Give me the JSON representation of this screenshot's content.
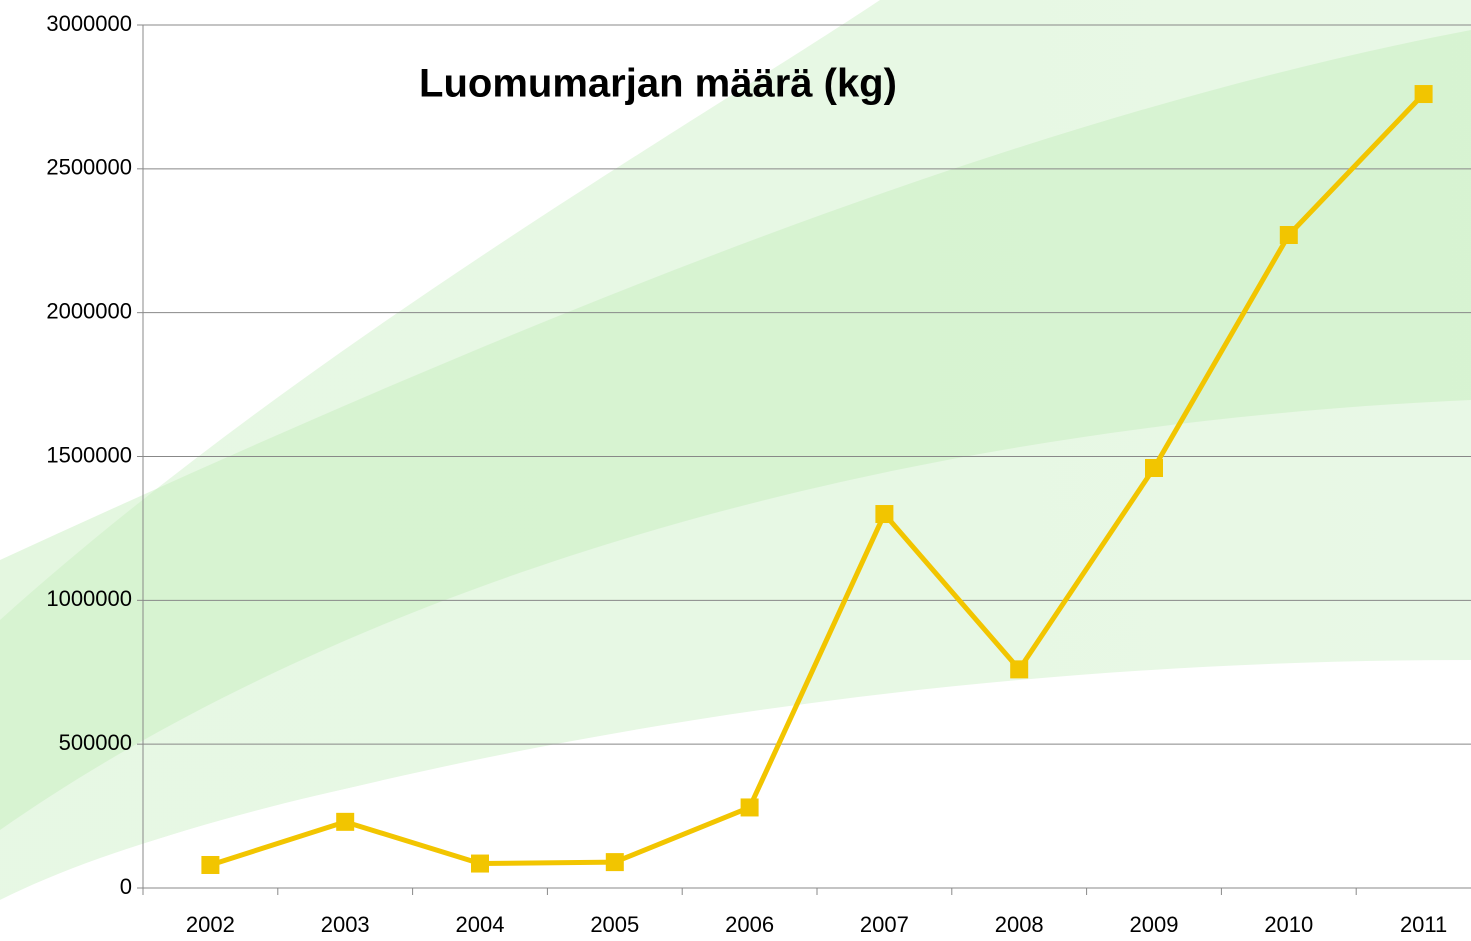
{
  "chart_data": {
    "type": "line",
    "title": "Luomumarjan määrä (kg)",
    "categories": [
      "2002",
      "2003",
      "2004",
      "2005",
      "2006",
      "2007",
      "2008",
      "2009",
      "2010",
      "2011"
    ],
    "values": [
      80000,
      230000,
      85000,
      90000,
      280000,
      1300000,
      760000,
      1460000,
      2270000,
      2760000
    ],
    "color": "#f2c500",
    "ylim": [
      0,
      3000000
    ],
    "yticks": [
      0,
      500000,
      1000000,
      1500000,
      2000000,
      2500000,
      3000000
    ],
    "grid": true
  }
}
